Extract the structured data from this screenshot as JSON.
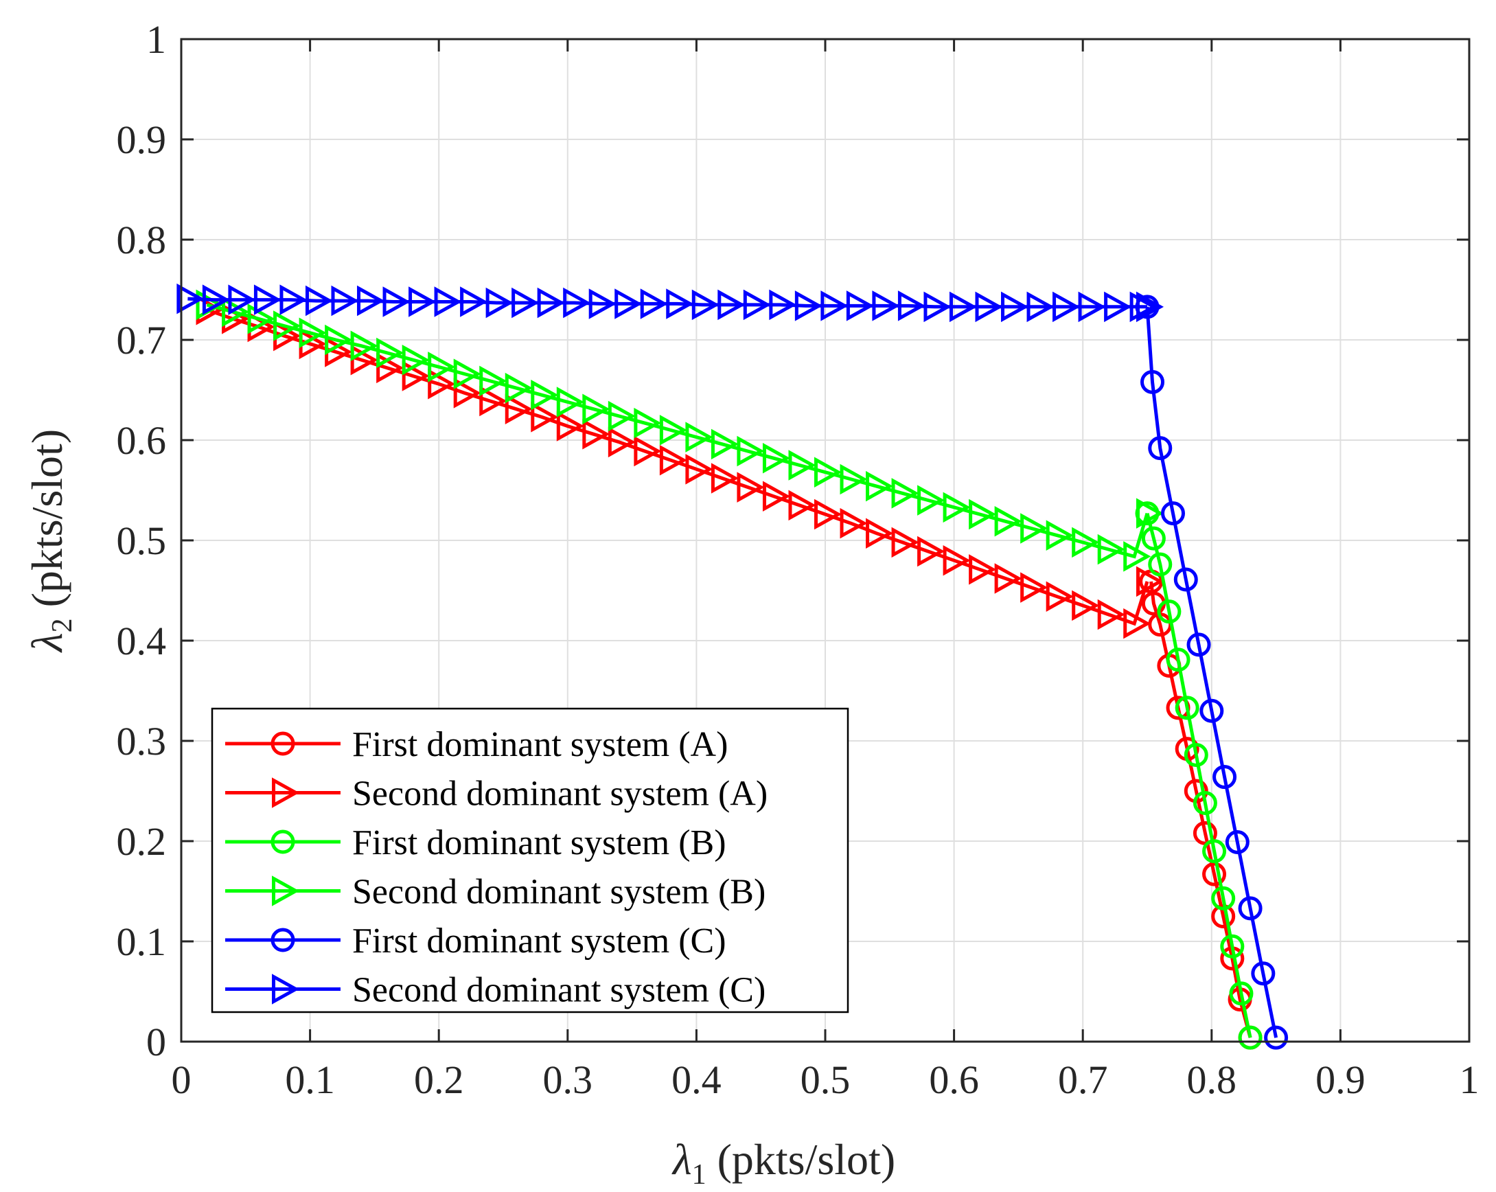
{
  "chart_data": {
    "type": "line",
    "title": "",
    "xlabel": {
      "symbol": "λ",
      "subscript": "1",
      "unit": " (pkts/slot)"
    },
    "ylabel": {
      "symbol": "λ",
      "subscript": "2",
      "unit": " (pkts/slot)"
    },
    "xlim": [
      0,
      1
    ],
    "ylim": [
      0,
      1
    ],
    "xticks": [
      0,
      0.1,
      0.2,
      0.3,
      0.4,
      0.5,
      0.6,
      0.7,
      0.8,
      0.9,
      1
    ],
    "yticks": [
      0,
      0.1,
      0.2,
      0.3,
      0.4,
      0.5,
      0.6,
      0.7,
      0.8,
      0.9,
      1
    ],
    "xtick_labels": [
      "0",
      "0.1",
      "0.2",
      "0.3",
      "0.4",
      "0.5",
      "0.6",
      "0.7",
      "0.8",
      "0.9",
      "1"
    ],
    "ytick_labels": [
      "0",
      "0.1",
      "0.2",
      "0.3",
      "0.4",
      "0.5",
      "0.6",
      "0.7",
      "0.8",
      "0.9",
      "1"
    ],
    "grid": true,
    "legend_position": "bottom-left",
    "series": [
      {
        "name": "First dominant system (A)",
        "color": "#ff0000",
        "marker": "circle",
        "points": [
          [
            0.753,
            0.459
          ],
          [
            0.755,
            0.437
          ],
          [
            0.76,
            0.416
          ],
          [
            0.767,
            0.375
          ],
          [
            0.774,
            0.333
          ],
          [
            0.781,
            0.292
          ],
          [
            0.788,
            0.25
          ],
          [
            0.795,
            0.208
          ],
          [
            0.802,
            0.167
          ],
          [
            0.809,
            0.125
          ],
          [
            0.816,
            0.083
          ],
          [
            0.822,
            0.042
          ],
          [
            0.83,
            0.004
          ]
        ]
      },
      {
        "name": "Second dominant system (A)",
        "color": "#ff0000",
        "marker": "triangle-right",
        "points": [
          [
            0.02,
            0.73
          ],
          [
            0.04,
            0.721
          ],
          [
            0.06,
            0.713
          ],
          [
            0.08,
            0.704
          ],
          [
            0.1,
            0.696
          ],
          [
            0.12,
            0.688
          ],
          [
            0.14,
            0.68
          ],
          [
            0.16,
            0.672
          ],
          [
            0.18,
            0.664
          ],
          [
            0.2,
            0.656
          ],
          [
            0.22,
            0.647
          ],
          [
            0.24,
            0.639
          ],
          [
            0.26,
            0.631
          ],
          [
            0.28,
            0.623
          ],
          [
            0.3,
            0.614
          ],
          [
            0.32,
            0.606
          ],
          [
            0.34,
            0.598
          ],
          [
            0.36,
            0.589
          ],
          [
            0.38,
            0.58
          ],
          [
            0.4,
            0.571
          ],
          [
            0.42,
            0.562
          ],
          [
            0.44,
            0.553
          ],
          [
            0.46,
            0.544
          ],
          [
            0.48,
            0.535
          ],
          [
            0.5,
            0.526
          ],
          [
            0.52,
            0.517
          ],
          [
            0.54,
            0.507
          ],
          [
            0.56,
            0.498
          ],
          [
            0.58,
            0.489
          ],
          [
            0.6,
            0.48
          ],
          [
            0.62,
            0.471
          ],
          [
            0.64,
            0.462
          ],
          [
            0.66,
            0.453
          ],
          [
            0.68,
            0.444
          ],
          [
            0.7,
            0.435
          ],
          [
            0.72,
            0.426
          ],
          [
            0.74,
            0.417
          ],
          [
            0.75,
            0.459
          ]
        ]
      },
      {
        "name": "First dominant system (B)",
        "color": "#00ff00",
        "marker": "circle",
        "points": [
          [
            0.75,
            0.527
          ],
          [
            0.755,
            0.502
          ],
          [
            0.76,
            0.476
          ],
          [
            0.767,
            0.429
          ],
          [
            0.774,
            0.381
          ],
          [
            0.781,
            0.333
          ],
          [
            0.788,
            0.286
          ],
          [
            0.795,
            0.238
          ],
          [
            0.802,
            0.19
          ],
          [
            0.809,
            0.143
          ],
          [
            0.816,
            0.095
          ],
          [
            0.823,
            0.048
          ],
          [
            0.83,
            0.004
          ]
        ]
      },
      {
        "name": "Second dominant system (B)",
        "color": "#00ff00",
        "marker": "triangle-right",
        "points": [
          [
            0.02,
            0.735
          ],
          [
            0.04,
            0.728
          ],
          [
            0.06,
            0.721
          ],
          [
            0.08,
            0.714
          ],
          [
            0.1,
            0.707
          ],
          [
            0.12,
            0.7
          ],
          [
            0.14,
            0.694
          ],
          [
            0.16,
            0.687
          ],
          [
            0.18,
            0.68
          ],
          [
            0.2,
            0.673
          ],
          [
            0.22,
            0.666
          ],
          [
            0.24,
            0.659
          ],
          [
            0.26,
            0.652
          ],
          [
            0.28,
            0.645
          ],
          [
            0.3,
            0.638
          ],
          [
            0.32,
            0.631
          ],
          [
            0.34,
            0.624
          ],
          [
            0.36,
            0.617
          ],
          [
            0.38,
            0.61
          ],
          [
            0.4,
            0.603
          ],
          [
            0.42,
            0.596
          ],
          [
            0.44,
            0.589
          ],
          [
            0.46,
            0.582
          ],
          [
            0.48,
            0.575
          ],
          [
            0.5,
            0.568
          ],
          [
            0.52,
            0.561
          ],
          [
            0.54,
            0.554
          ],
          [
            0.56,
            0.547
          ],
          [
            0.58,
            0.54
          ],
          [
            0.6,
            0.533
          ],
          [
            0.62,
            0.526
          ],
          [
            0.64,
            0.519
          ],
          [
            0.66,
            0.512
          ],
          [
            0.68,
            0.505
          ],
          [
            0.7,
            0.498
          ],
          [
            0.72,
            0.491
          ],
          [
            0.74,
            0.484
          ],
          [
            0.75,
            0.527
          ]
        ]
      },
      {
        "name": "First dominant system (C)",
        "color": "#0000ff",
        "marker": "circle",
        "points": [
          [
            0.75,
            0.733
          ],
          [
            0.754,
            0.658
          ],
          [
            0.76,
            0.592
          ],
          [
            0.77,
            0.527
          ],
          [
            0.78,
            0.461
          ],
          [
            0.79,
            0.396
          ],
          [
            0.8,
            0.33
          ],
          [
            0.81,
            0.264
          ],
          [
            0.82,
            0.199
          ],
          [
            0.83,
            0.133
          ],
          [
            0.84,
            0.068
          ],
          [
            0.85,
            0.004
          ]
        ]
      },
      {
        "name": "Second dominant system (C)",
        "color": "#0000ff",
        "marker": "triangle-right",
        "points": [
          [
            0.005,
            0.741
          ],
          [
            0.025,
            0.74
          ],
          [
            0.045,
            0.74
          ],
          [
            0.065,
            0.74
          ],
          [
            0.085,
            0.74
          ],
          [
            0.105,
            0.739
          ],
          [
            0.125,
            0.739
          ],
          [
            0.145,
            0.739
          ],
          [
            0.165,
            0.738
          ],
          [
            0.185,
            0.738
          ],
          [
            0.205,
            0.738
          ],
          [
            0.225,
            0.738
          ],
          [
            0.245,
            0.737
          ],
          [
            0.265,
            0.737
          ],
          [
            0.285,
            0.737
          ],
          [
            0.305,
            0.737
          ],
          [
            0.325,
            0.736
          ],
          [
            0.345,
            0.736
          ],
          [
            0.365,
            0.736
          ],
          [
            0.385,
            0.736
          ],
          [
            0.405,
            0.735
          ],
          [
            0.425,
            0.735
          ],
          [
            0.445,
            0.735
          ],
          [
            0.465,
            0.735
          ],
          [
            0.485,
            0.734
          ],
          [
            0.505,
            0.734
          ],
          [
            0.525,
            0.734
          ],
          [
            0.545,
            0.734
          ],
          [
            0.565,
            0.734
          ],
          [
            0.585,
            0.733
          ],
          [
            0.605,
            0.733
          ],
          [
            0.625,
            0.733
          ],
          [
            0.645,
            0.733
          ],
          [
            0.665,
            0.733
          ],
          [
            0.685,
            0.733
          ],
          [
            0.705,
            0.733
          ],
          [
            0.725,
            0.733
          ],
          [
            0.745,
            0.733
          ],
          [
            0.75,
            0.733
          ]
        ]
      }
    ]
  }
}
